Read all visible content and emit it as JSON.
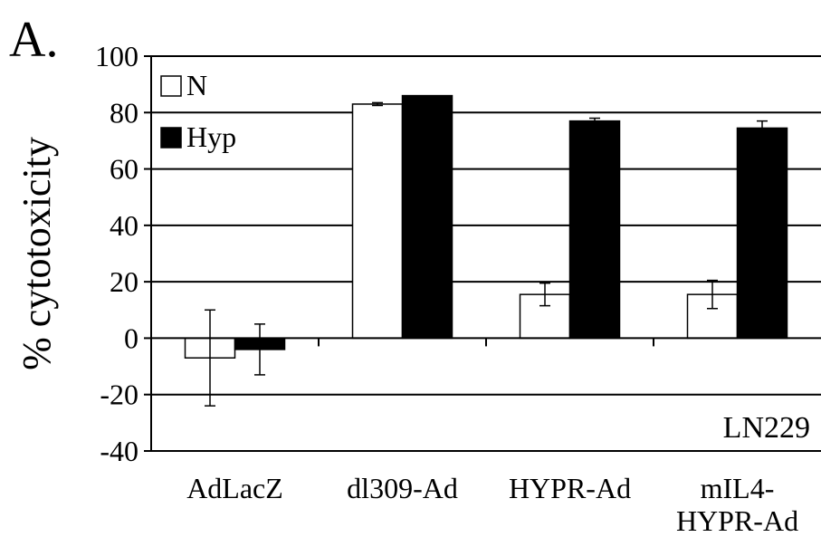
{
  "panel_label": "A.",
  "chart_data": {
    "type": "bar",
    "title": "",
    "xlabel": "",
    "ylabel": "% cytotoxicity",
    "ylim": [
      -40,
      100
    ],
    "yticks": [
      -40,
      -20,
      0,
      20,
      40,
      60,
      80,
      100
    ],
    "ytick_labels": [
      "-40",
      "-20",
      "0",
      "20",
      "40",
      "60",
      "80",
      "100"
    ],
    "categories": [
      [
        "AdLacZ"
      ],
      [
        "dl309-Ad"
      ],
      [
        "HYPR-Ad"
      ],
      [
        "mIL4-",
        "HYPR-Ad"
      ]
    ],
    "series": [
      {
        "name": "N",
        "color": "#ffffff",
        "values": [
          -7,
          83,
          15.5,
          15.5
        ],
        "errors": [
          17,
          0.5,
          4,
          5
        ]
      },
      {
        "name": "Hyp",
        "color": "#000000",
        "values": [
          -4,
          86,
          77,
          74.5
        ],
        "errors": [
          9,
          0,
          1,
          2.5
        ]
      }
    ],
    "grid": true,
    "legend": "top-left",
    "annotation": "LN229"
  }
}
